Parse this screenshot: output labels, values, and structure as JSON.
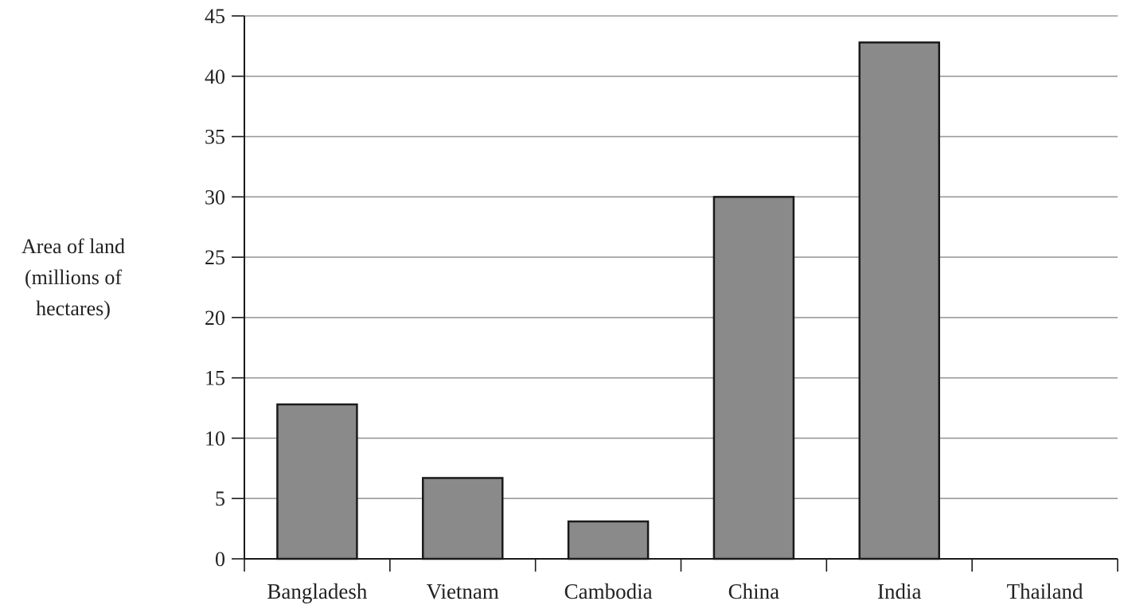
{
  "chart_data": {
    "type": "bar",
    "title": "",
    "xlabel": "",
    "ylabel": [
      "Area of land",
      "(millions of",
      "hectares)"
    ],
    "categories": [
      "Bangladesh",
      "Vietnam",
      "Cambodia",
      "China",
      "India",
      "Thailand"
    ],
    "values": [
      12.8,
      6.7,
      3.1,
      30.0,
      42.8,
      0
    ],
    "ylim": [
      0,
      45
    ],
    "yticks": [
      0,
      5,
      10,
      15,
      20,
      25,
      30,
      35,
      40,
      45
    ],
    "ytick_labels": [
      "0",
      "5",
      "10",
      "15",
      "20",
      "25",
      "30",
      "35",
      "40",
      "45"
    ],
    "grid": true,
    "legend": "none",
    "colors": {
      "bar_fill": "#8a8a8a",
      "bar_stroke": "#1a1a1a",
      "grid": "#9a9a9a",
      "axis": "#1a1a1a"
    }
  }
}
